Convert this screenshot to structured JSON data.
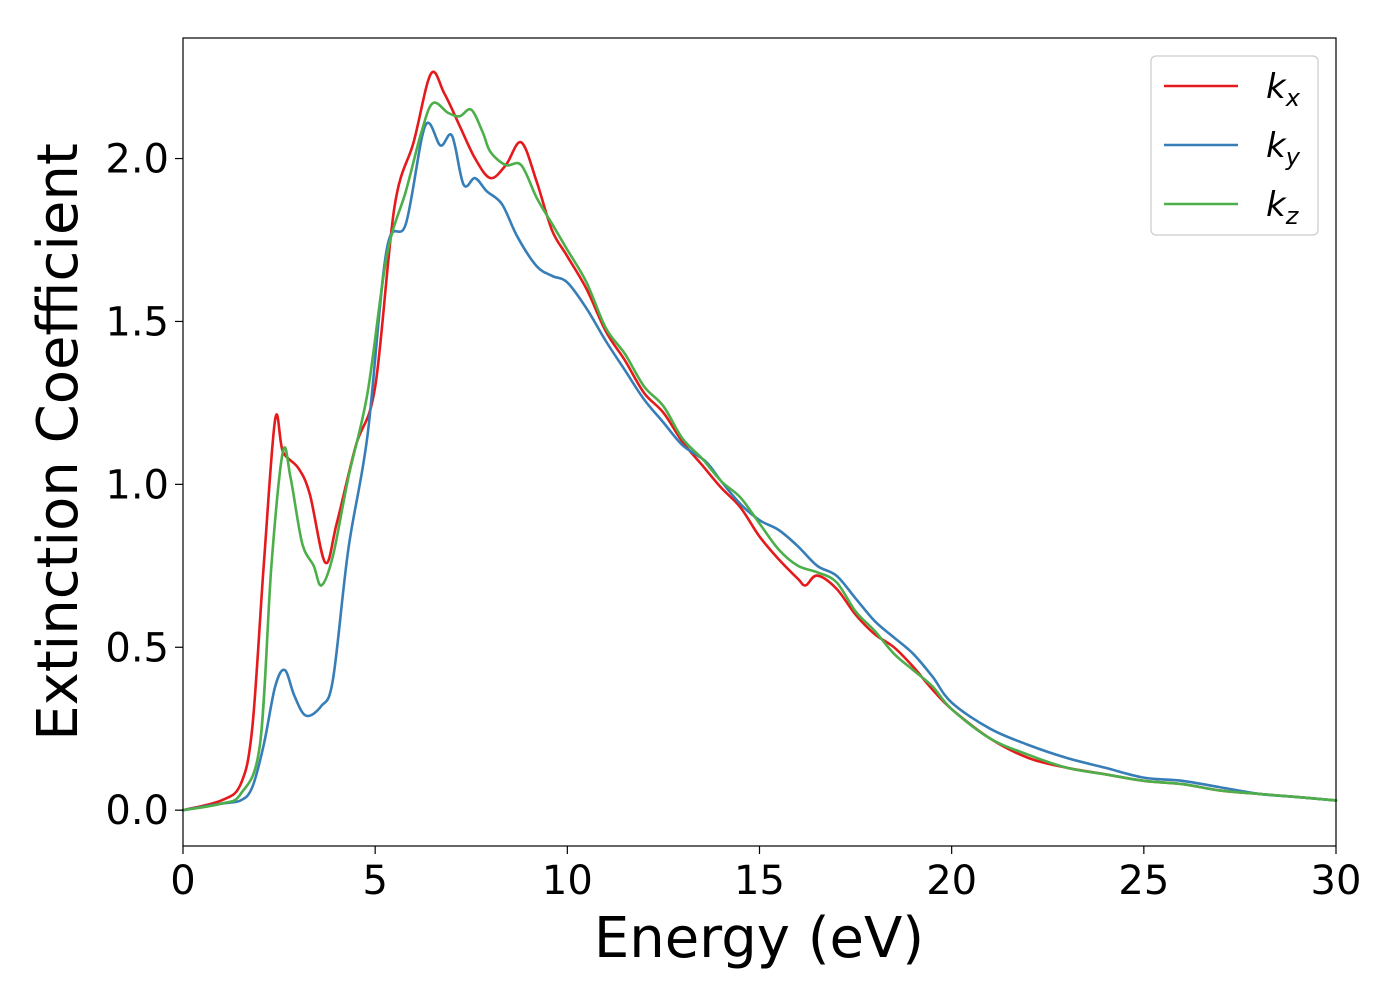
{
  "chart_data": {
    "type": "line",
    "xlabel": "Energy (eV)",
    "ylabel": "Extinction Coefficient",
    "xlim": [
      0,
      30
    ],
    "ylim": [
      -0.11,
      2.37
    ],
    "xticks": [
      0,
      5,
      10,
      15,
      20,
      25,
      30
    ],
    "xtick_labels": [
      "0",
      "5",
      "10",
      "15",
      "20",
      "25",
      "30"
    ],
    "yticks": [
      0.0,
      0.5,
      1.0,
      1.5,
      2.0
    ],
    "ytick_labels": [
      "0.0",
      "0.5",
      "1.0",
      "1.5",
      "2.0"
    ],
    "grid": false,
    "legend_position": "top-right",
    "series": [
      {
        "name": "kx",
        "legend_base": "k",
        "legend_sub": "x",
        "color": "#e41a1c",
        "x": [
          0,
          1,
          1.5,
          1.8,
          2.1,
          2.4,
          2.6,
          3.0,
          3.3,
          3.7,
          4.0,
          4.5,
          5.0,
          5.5,
          6.0,
          6.45,
          6.8,
          7.2,
          7.6,
          8.0,
          8.4,
          8.8,
          9.2,
          9.6,
          10.0,
          10.5,
          11.0,
          11.5,
          12.0,
          12.5,
          13.0,
          13.5,
          14.0,
          14.5,
          15.0,
          15.5,
          16.0,
          16.2,
          16.5,
          17.0,
          17.5,
          18.0,
          18.5,
          19.0,
          19.5,
          20.0,
          21.0,
          22.0,
          23.0,
          24.0,
          25.0,
          26.0,
          27.0,
          28.0,
          29.0,
          30.0
        ],
        "y": [
          0.0,
          0.03,
          0.08,
          0.25,
          0.75,
          1.2,
          1.1,
          1.05,
          0.97,
          0.76,
          0.88,
          1.12,
          1.3,
          1.85,
          2.05,
          2.26,
          2.2,
          2.1,
          2.0,
          1.94,
          1.98,
          2.05,
          1.93,
          1.78,
          1.7,
          1.6,
          1.47,
          1.38,
          1.28,
          1.22,
          1.13,
          1.06,
          0.99,
          0.93,
          0.84,
          0.77,
          0.71,
          0.69,
          0.72,
          0.68,
          0.6,
          0.54,
          0.5,
          0.44,
          0.37,
          0.31,
          0.22,
          0.16,
          0.13,
          0.11,
          0.09,
          0.08,
          0.06,
          0.05,
          0.04,
          0.03
        ]
      },
      {
        "name": "ky",
        "legend_base": "k",
        "legend_sub": "y",
        "color": "#377eb8",
        "x": [
          0,
          1,
          1.5,
          1.8,
          2.1,
          2.4,
          2.65,
          2.9,
          3.2,
          3.6,
          3.9,
          4.3,
          4.8,
          5.3,
          5.8,
          6.3,
          6.7,
          7.0,
          7.3,
          7.6,
          7.9,
          8.3,
          8.7,
          9.2,
          9.6,
          10.0,
          10.5,
          11.0,
          11.5,
          12.0,
          12.5,
          13.0,
          13.6,
          14.0,
          14.5,
          15.0,
          15.5,
          16.0,
          16.5,
          17.0,
          17.5,
          18.0,
          18.5,
          19.0,
          19.5,
          20.0,
          21.0,
          22.0,
          23.0,
          24.0,
          25.0,
          26.0,
          27.0,
          28.0,
          29.0,
          30.0
        ],
        "y": [
          0.0,
          0.02,
          0.03,
          0.07,
          0.2,
          0.38,
          0.43,
          0.35,
          0.29,
          0.32,
          0.4,
          0.8,
          1.15,
          1.72,
          1.8,
          2.1,
          2.04,
          2.07,
          1.92,
          1.94,
          1.9,
          1.86,
          1.76,
          1.67,
          1.64,
          1.62,
          1.54,
          1.44,
          1.35,
          1.26,
          1.19,
          1.12,
          1.07,
          1.01,
          0.94,
          0.89,
          0.86,
          0.81,
          0.75,
          0.72,
          0.65,
          0.58,
          0.53,
          0.48,
          0.41,
          0.33,
          0.25,
          0.2,
          0.16,
          0.13,
          0.1,
          0.09,
          0.07,
          0.05,
          0.04,
          0.03
        ]
      },
      {
        "name": "kz",
        "legend_base": "k",
        "legend_sub": "z",
        "color": "#4daf4a",
        "x": [
          0,
          1,
          1.5,
          2.0,
          2.3,
          2.6,
          2.8,
          3.1,
          3.4,
          3.6,
          3.9,
          4.3,
          4.8,
          5.3,
          5.8,
          6.2,
          6.5,
          6.9,
          7.2,
          7.5,
          7.8,
          8.0,
          8.4,
          8.8,
          9.2,
          9.6,
          10.0,
          10.5,
          11.0,
          11.5,
          12.0,
          12.5,
          13.0,
          13.5,
          14.0,
          14.5,
          15.0,
          15.5,
          16.0,
          16.5,
          17.0,
          17.5,
          18.0,
          18.5,
          19.0,
          19.5,
          20.0,
          21.0,
          22.0,
          23.0,
          24.0,
          25.0,
          26.0,
          27.0,
          28.0,
          29.0,
          30.0
        ],
        "y": [
          0.0,
          0.02,
          0.05,
          0.2,
          0.75,
          1.1,
          1.02,
          0.82,
          0.75,
          0.69,
          0.78,
          1.02,
          1.28,
          1.7,
          1.9,
          2.08,
          2.17,
          2.14,
          2.13,
          2.15,
          2.08,
          2.02,
          1.98,
          1.98,
          1.88,
          1.8,
          1.72,
          1.62,
          1.48,
          1.4,
          1.3,
          1.24,
          1.14,
          1.08,
          1.01,
          0.96,
          0.88,
          0.8,
          0.75,
          0.73,
          0.7,
          0.61,
          0.55,
          0.48,
          0.43,
          0.38,
          0.31,
          0.22,
          0.17,
          0.13,
          0.11,
          0.09,
          0.08,
          0.06,
          0.05,
          0.04,
          0.03
        ]
      }
    ]
  }
}
